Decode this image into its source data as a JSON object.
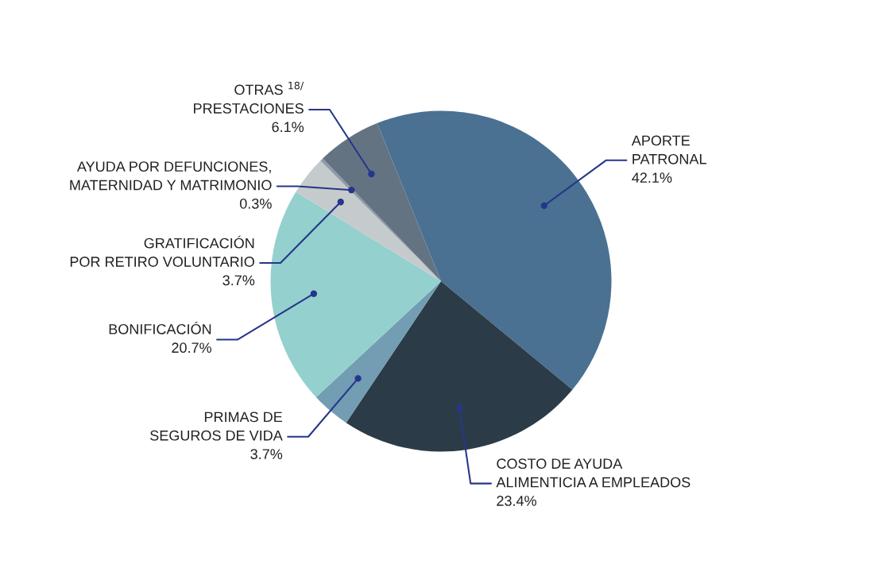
{
  "chart_data": {
    "type": "pie",
    "categories": [
      "APORTE\nPATRONAL",
      "COSTO DE AYUDA\nALIMENTICIA A EMPLEADOS",
      "PRIMAS DE\nSEGUROS DE VIDA",
      "BONIFICACIÓN",
      "GRATIFICACIÓN\nPOR RETIRO VOLUNTARIO",
      "AYUDA POR DEFUNCIONES,\nMATERNIDAD Y MATRIMONIO",
      "OTRAS $^{18/}$\nPRESTACIONES"
    ],
    "values": [
      42.1,
      23.4,
      3.7,
      20.7,
      3.7,
      0.3,
      6.1
    ],
    "value_labels": [
      "42.1%",
      "23.4%",
      "3.7%",
      "20.7%",
      "3.7%",
      "0.3%",
      "6.1%"
    ],
    "colors": [
      "#4a7191",
      "#2b3c48",
      "#729db2",
      "#94d0ce",
      "#c5cbcc",
      "#8e9ba6",
      "#647382"
    ],
    "legend": false
  }
}
